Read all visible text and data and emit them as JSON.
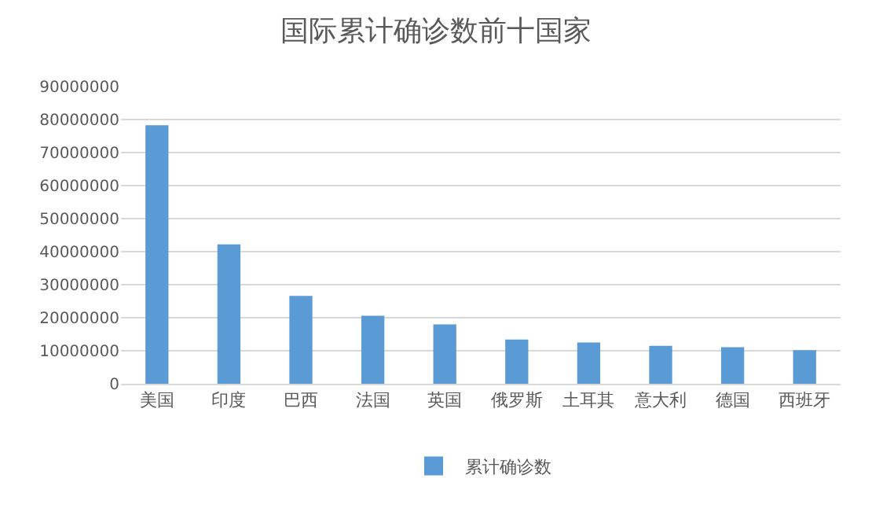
{
  "chart_data": {
    "type": "bar",
    "title": "国际累计确诊数前十国家",
    "categories": [
      "美国",
      "印度",
      "巴西",
      "法国",
      "英国",
      "俄罗斯",
      "土耳其",
      "意大利",
      "德国",
      "西班牙"
    ],
    "series": [
      {
        "name": "累计确诊数",
        "color": "#5b9bd5",
        "values": [
          78300000,
          42200000,
          26600000,
          20600000,
          18000000,
          13400000,
          12500000,
          11500000,
          11100000,
          10200000
        ]
      }
    ],
    "ylim": [
      0,
      90000000
    ],
    "yticks": [
      0,
      10000000,
      20000000,
      30000000,
      40000000,
      50000000,
      60000000,
      70000000,
      80000000,
      90000000
    ],
    "grid": "y",
    "legend": "bottom"
  }
}
